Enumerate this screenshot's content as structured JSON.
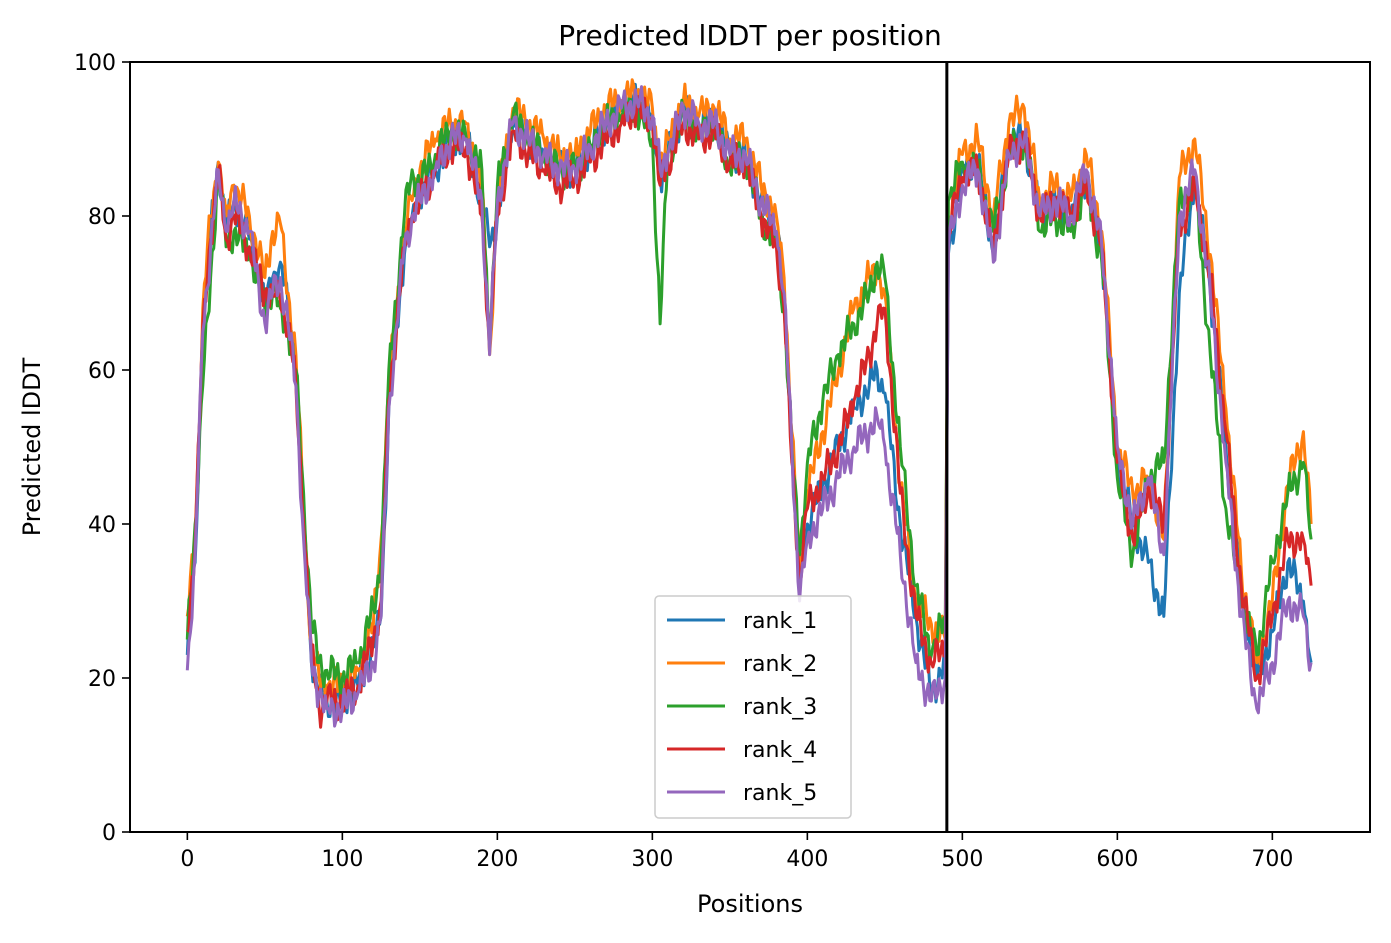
{
  "chart_data": {
    "type": "line",
    "title": "Predicted lDDT per position",
    "xlabel": "Positions",
    "ylabel": "Predicted lDDT",
    "xlim": [
      -37,
      763
    ],
    "ylim": [
      0,
      100
    ],
    "xticks": [
      0,
      100,
      200,
      300,
      400,
      500,
      600,
      700
    ],
    "yticks": [
      0,
      20,
      40,
      60,
      80,
      100
    ],
    "grid": false,
    "legend_position": "lower-center",
    "vline_x": 490,
    "series": [
      {
        "name": "rank_1",
        "color": "#1f77b4",
        "x": [
          0,
          5,
          10,
          15,
          20,
          25,
          30,
          40,
          50,
          55,
          60,
          65,
          70,
          75,
          80,
          85,
          90,
          100,
          110,
          120,
          125,
          130,
          140,
          145,
          150,
          160,
          170,
          180,
          190,
          195,
          200,
          210,
          220,
          230,
          240,
          250,
          260,
          270,
          280,
          290,
          300,
          305,
          310,
          320,
          330,
          340,
          350,
          360,
          370,
          380,
          385,
          390,
          395,
          400,
          410,
          420,
          430,
          440,
          445,
          450,
          460,
          470,
          480,
          489,
          491,
          500,
          510,
          520,
          530,
          540,
          550,
          560,
          570,
          580,
          590,
          600,
          610,
          620,
          630,
          640,
          650,
          660,
          670,
          680,
          690,
          700,
          710,
          720,
          725
        ],
        "values": [
          23,
          35,
          65,
          78,
          87,
          78,
          82,
          77,
          68,
          72,
          74,
          68,
          60,
          40,
          22,
          18,
          17,
          17,
          19,
          24,
          28,
          55,
          75,
          80,
          83,
          86,
          90,
          90,
          82,
          76,
          80,
          92,
          90,
          88,
          86,
          86,
          89,
          92,
          94,
          95,
          93,
          85,
          88,
          94,
          92,
          92,
          88,
          88,
          82,
          78,
          70,
          50,
          32,
          40,
          45,
          50,
          55,
          58,
          60,
          57,
          40,
          28,
          18,
          22,
          75,
          86,
          87,
          75,
          90,
          90,
          80,
          82,
          80,
          85,
          75,
          48,
          40,
          35,
          28,
          70,
          85,
          70,
          50,
          30,
          20,
          26,
          35,
          30,
          22
        ]
      },
      {
        "name": "rank_2",
        "color": "#ff7f0e",
        "x": [
          0,
          5,
          10,
          15,
          20,
          25,
          30,
          40,
          50,
          55,
          60,
          65,
          70,
          75,
          80,
          85,
          90,
          100,
          110,
          120,
          125,
          130,
          140,
          145,
          150,
          160,
          170,
          180,
          190,
          195,
          200,
          210,
          220,
          230,
          240,
          250,
          260,
          270,
          280,
          290,
          300,
          305,
          310,
          320,
          330,
          340,
          350,
          360,
          370,
          380,
          385,
          390,
          395,
          400,
          410,
          420,
          430,
          440,
          445,
          450,
          460,
          470,
          480,
          489,
          491,
          500,
          510,
          520,
          530,
          540,
          550,
          560,
          570,
          580,
          590,
          600,
          610,
          620,
          630,
          640,
          650,
          660,
          670,
          680,
          690,
          700,
          710,
          720,
          725
        ],
        "values": [
          28,
          38,
          68,
          80,
          87,
          80,
          84,
          80,
          72,
          78,
          79,
          70,
          62,
          42,
          24,
          20,
          19,
          19,
          21,
          27,
          38,
          58,
          78,
          82,
          86,
          90,
          92,
          92,
          84,
          62,
          82,
          94,
          92,
          90,
          88,
          88,
          91,
          94,
          95,
          96,
          94,
          86,
          90,
          95,
          93,
          94,
          90,
          90,
          84,
          80,
          72,
          52,
          34,
          44,
          52,
          60,
          68,
          72,
          73,
          70,
          45,
          30,
          27,
          25,
          80,
          88,
          90,
          80,
          92,
          94,
          82,
          84,
          82,
          88,
          78,
          50,
          44,
          46,
          38,
          85,
          90,
          75,
          55,
          34,
          22,
          30,
          45,
          52,
          40
        ]
      },
      {
        "name": "rank_3",
        "color": "#2ca02c",
        "x": [
          0,
          5,
          10,
          15,
          20,
          25,
          30,
          40,
          50,
          55,
          60,
          65,
          70,
          75,
          80,
          85,
          90,
          100,
          110,
          120,
          125,
          130,
          140,
          145,
          150,
          160,
          170,
          180,
          190,
          195,
          200,
          210,
          220,
          230,
          240,
          250,
          260,
          270,
          280,
          290,
          300,
          305,
          310,
          320,
          330,
          340,
          350,
          360,
          370,
          380,
          385,
          390,
          395,
          400,
          410,
          420,
          430,
          440,
          445,
          450,
          460,
          470,
          480,
          489,
          491,
          500,
          510,
          520,
          530,
          540,
          550,
          560,
          570,
          580,
          590,
          600,
          610,
          620,
          630,
          640,
          650,
          660,
          670,
          680,
          690,
          700,
          710,
          720,
          725
        ],
        "values": [
          25,
          40,
          58,
          72,
          86,
          76,
          78,
          75,
          68,
          70,
          68,
          65,
          60,
          44,
          27,
          22,
          21,
          20,
          22,
          29,
          35,
          60,
          80,
          86,
          84,
          88,
          91,
          90,
          86,
          63,
          84,
          93,
          90,
          88,
          86,
          86,
          89,
          92,
          93,
          94,
          90,
          66,
          88,
          93,
          91,
          92,
          86,
          88,
          80,
          76,
          68,
          50,
          36,
          48,
          56,
          62,
          66,
          70,
          74,
          72,
          50,
          32,
          23,
          28,
          82,
          87,
          86,
          78,
          88,
          90,
          78,
          80,
          78,
          84,
          74,
          46,
          36,
          46,
          48,
          82,
          84,
          62,
          42,
          30,
          23,
          35,
          44,
          48,
          38
        ]
      },
      {
        "name": "rank_4",
        "color": "#d62728",
        "x": [
          0,
          5,
          10,
          15,
          20,
          25,
          30,
          40,
          50,
          55,
          60,
          65,
          70,
          75,
          80,
          85,
          90,
          100,
          110,
          120,
          125,
          130,
          140,
          145,
          150,
          160,
          170,
          180,
          190,
          195,
          200,
          210,
          220,
          230,
          240,
          250,
          260,
          270,
          280,
          290,
          300,
          305,
          310,
          320,
          330,
          340,
          350,
          360,
          370,
          380,
          385,
          390,
          395,
          400,
          410,
          420,
          430,
          440,
          445,
          450,
          460,
          470,
          480,
          489,
          491,
          500,
          510,
          520,
          530,
          540,
          550,
          560,
          570,
          580,
          590,
          600,
          610,
          620,
          630,
          640,
          650,
          660,
          670,
          680,
          690,
          700,
          710,
          720,
          725
        ],
        "values": [
          26,
          37,
          66,
          77,
          86,
          77,
          80,
          76,
          70,
          70,
          69,
          66,
          58,
          40,
          24,
          16,
          17,
          17,
          19,
          25,
          30,
          56,
          76,
          80,
          82,
          86,
          89,
          89,
          80,
          64,
          80,
          91,
          88,
          86,
          84,
          85,
          87,
          90,
          92,
          94,
          92,
          84,
          87,
          92,
          90,
          91,
          87,
          87,
          80,
          76,
          68,
          48,
          33,
          42,
          46,
          50,
          56,
          62,
          66,
          68,
          44,
          28,
          22,
          24,
          78,
          85,
          86,
          76,
          88,
          90,
          80,
          82,
          80,
          84,
          76,
          48,
          38,
          45,
          40,
          78,
          84,
          72,
          52,
          32,
          20,
          28,
          38,
          38,
          32
        ]
      },
      {
        "name": "rank_5",
        "color": "#9467bd",
        "x": [
          0,
          5,
          10,
          15,
          20,
          25,
          30,
          40,
          50,
          55,
          60,
          65,
          70,
          75,
          80,
          85,
          90,
          100,
          110,
          120,
          125,
          130,
          140,
          145,
          150,
          160,
          170,
          180,
          190,
          195,
          200,
          210,
          220,
          230,
          240,
          250,
          260,
          270,
          280,
          290,
          300,
          305,
          310,
          320,
          330,
          340,
          350,
          360,
          370,
          380,
          385,
          390,
          395,
          400,
          410,
          420,
          430,
          440,
          445,
          450,
          460,
          470,
          480,
          489,
          491,
          500,
          510,
          520,
          530,
          540,
          550,
          560,
          570,
          580,
          590,
          600,
          610,
          620,
          630,
          640,
          650,
          660,
          670,
          680,
          690,
          700,
          710,
          720,
          725
        ],
        "values": [
          21,
          36,
          65,
          76,
          86,
          78,
          82,
          78,
          66,
          70,
          72,
          66,
          58,
          38,
          22,
          18,
          16,
          16,
          18,
          22,
          28,
          55,
          76,
          80,
          82,
          86,
          90,
          90,
          82,
          62,
          82,
          92,
          90,
          88,
          86,
          86,
          89,
          92,
          94,
          95,
          93,
          86,
          88,
          94,
          92,
          92,
          88,
          88,
          82,
          78,
          70,
          50,
          30,
          38,
          42,
          46,
          50,
          52,
          54,
          50,
          36,
          22,
          17,
          20,
          76,
          84,
          86,
          74,
          88,
          90,
          80,
          82,
          80,
          86,
          76,
          50,
          40,
          46,
          36,
          80,
          86,
          70,
          48,
          28,
          16,
          22,
          30,
          28,
          22
        ]
      }
    ]
  }
}
